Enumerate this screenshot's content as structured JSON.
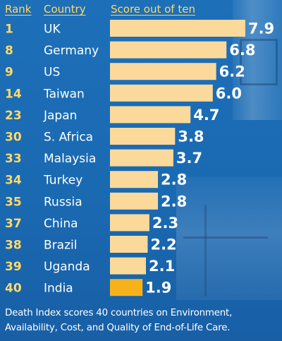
{
  "headers": {
    "rank": "Rank",
    "country": "Country",
    "score": "Score out of ten"
  },
  "caption": {
    "line1": "Death Index scores 40 countries on Environment,",
    "line2": "Availability, Cost, and Quality of End-of-Life Care."
  },
  "colors": {
    "background": "#1a6ab2",
    "rank_text": "#ffd968",
    "country_text": "#ffffff",
    "bar": "#fbd99a",
    "bar_highlight": "#f7b21b",
    "value_text": "#ffffff"
  },
  "chart_data": {
    "type": "bar",
    "orientation": "horizontal",
    "categories": [
      "UK",
      "Germany",
      "US",
      "Taiwan",
      "Japan",
      "S. Africa",
      "Malaysia",
      "Turkey",
      "Russia",
      "China",
      "Brazil",
      "Uganda",
      "India"
    ],
    "ranks": [
      "1",
      "8",
      "9",
      "14",
      "23",
      "30",
      "33",
      "34",
      "35",
      "37",
      "38",
      "39",
      "40"
    ],
    "values": [
      7.9,
      6.8,
      6.2,
      6.0,
      4.7,
      3.8,
      3.7,
      2.8,
      2.8,
      2.3,
      2.2,
      2.1,
      1.9
    ],
    "value_labels": [
      "7.9",
      "6.8",
      "6.2",
      "6.0",
      "4.7",
      "3.8",
      "3.7",
      "2.8",
      "2.8",
      "2.3",
      "2.2",
      "2.1",
      "1.9"
    ],
    "highlight": "India",
    "xlim": [
      0,
      10
    ],
    "grid": false,
    "legend": "none"
  }
}
